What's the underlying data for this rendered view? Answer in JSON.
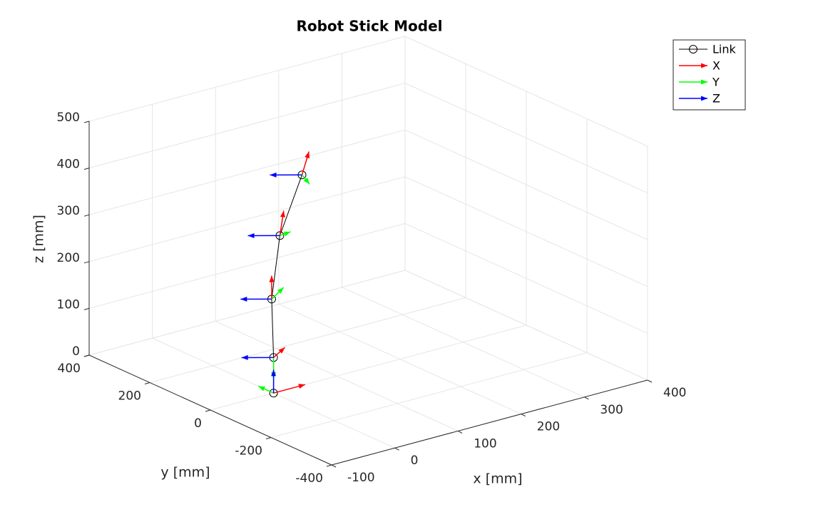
{
  "chart_data": {
    "type": "quiver3",
    "title": "Robot Stick Model",
    "xlabel": "x [mm]",
    "ylabel": "y [mm]",
    "zlabel": "z [mm]",
    "xlim": [
      -100,
      400
    ],
    "ylim": [
      -400,
      400
    ],
    "zlim": [
      0,
      500
    ],
    "xticks": [
      -100,
      0,
      100,
      200,
      300,
      400
    ],
    "yticks": [
      -400,
      -200,
      0,
      200,
      400
    ],
    "zticks": [
      0,
      100,
      200,
      300,
      400,
      500
    ],
    "grid": true,
    "legend_location": "northeast",
    "series": [
      {
        "name": "Link",
        "color": "#000000",
        "x": [
          0,
          0,
          -3,
          10,
          45
        ],
        "y": [
          0,
          0,
          0,
          0,
          0
        ],
        "z": [
          0,
          76,
          202,
          333,
          450
        ]
      },
      {
        "name": "X",
        "color": "#ff0000",
        "x": [
          0,
          0,
          -3,
          10,
          45
        ],
        "y": [
          0,
          0,
          0,
          0,
          0
        ],
        "z": [
          0,
          76,
          202,
          333,
          450
        ],
        "u": [
          50,
          18,
          0,
          6,
          11
        ],
        "v": [
          0,
          0,
          0,
          0,
          0
        ],
        "w": [
          0,
          15,
          50,
          51,
          46
        ]
      },
      {
        "name": "Y",
        "color": "#00ff00",
        "x": [
          0,
          0,
          -3,
          10,
          45
        ],
        "y": [
          0,
          0,
          0,
          0,
          0
        ],
        "z": [
          0,
          76,
          202,
          333,
          450
        ],
        "u": [
          0,
          0,
          19,
          17,
          12
        ],
        "v": [
          50,
          0,
          0,
          0,
          0
        ],
        "w": [
          0,
          -45,
          18,
          2,
          -24
        ]
      },
      {
        "name": "Z",
        "color": "#0000ff",
        "x": [
          0,
          0,
          -3,
          10,
          45
        ],
        "y": [
          0,
          0,
          0,
          0,
          0
        ],
        "z": [
          0,
          76,
          202,
          333,
          450
        ],
        "u": [
          0,
          -32,
          -31,
          -32,
          -32
        ],
        "v": [
          0,
          39,
          38,
          39,
          39
        ],
        "w": [
          50,
          0,
          0,
          0,
          0
        ]
      }
    ]
  }
}
